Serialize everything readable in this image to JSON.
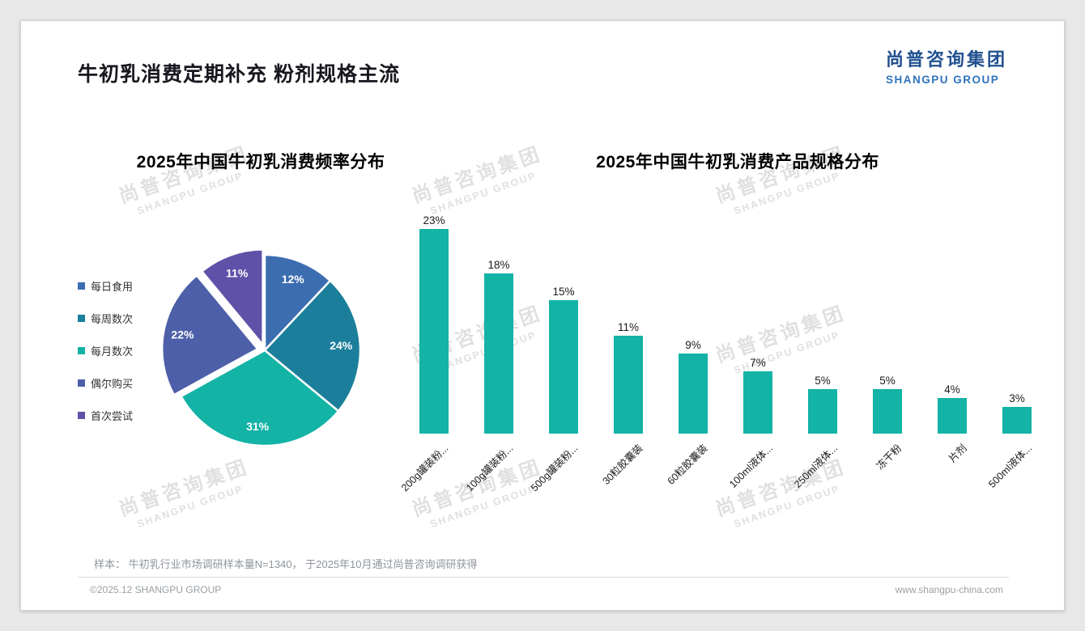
{
  "page": {
    "title": "牛初乳消费定期补充 粉剂规格主流",
    "logo": {
      "cn": "尚普咨询集团",
      "en": "SHANGPU GROUP"
    },
    "watermark": {
      "cn": "尚普咨询集团",
      "en": "SHANGPU GROUP"
    },
    "footer": {
      "note": "样本： 牛初乳行业市场调研样本量N=1340， 于2025年10月通过尚普咨询调研获得",
      "copyright": "©2025.12 SHANGPU GROUP",
      "website": "www.shangpu-china.com"
    }
  },
  "chart_data": [
    {
      "type": "pie",
      "title": "2025年中国牛初乳消费频率分布",
      "labels": [
        "每日食用",
        "每周数次",
        "每月数次",
        "偶尔购买",
        "首次尝试"
      ],
      "values": [
        12,
        24,
        31,
        22,
        11
      ],
      "unit": "%",
      "colors": [
        "#3c6db0",
        "#1b7f9b",
        "#13b3a6",
        "#4d5fa8",
        "#5f51a7"
      ],
      "legend_position": "left",
      "start_angle_deg": -90,
      "direction": "clockwise"
    },
    {
      "type": "bar",
      "title": "2025年中国牛初乳消费产品规格分布",
      "categories": [
        "200g罐装粉...",
        "100g罐装粉...",
        "500g罐装粉...",
        "30粒胶囊装",
        "60粒胶囊装",
        "100ml液体...",
        "250ml液体...",
        "冻干粉",
        "片剂",
        "500ml液体..."
      ],
      "values": [
        23,
        18,
        15,
        11,
        9,
        7,
        5,
        5,
        4,
        3
      ],
      "unit": "%",
      "bar_color": "#13b3a6",
      "ylim": [
        0,
        25
      ],
      "grid": false,
      "value_labels": "above bars",
      "category_label_rotation_deg": 45
    }
  ]
}
